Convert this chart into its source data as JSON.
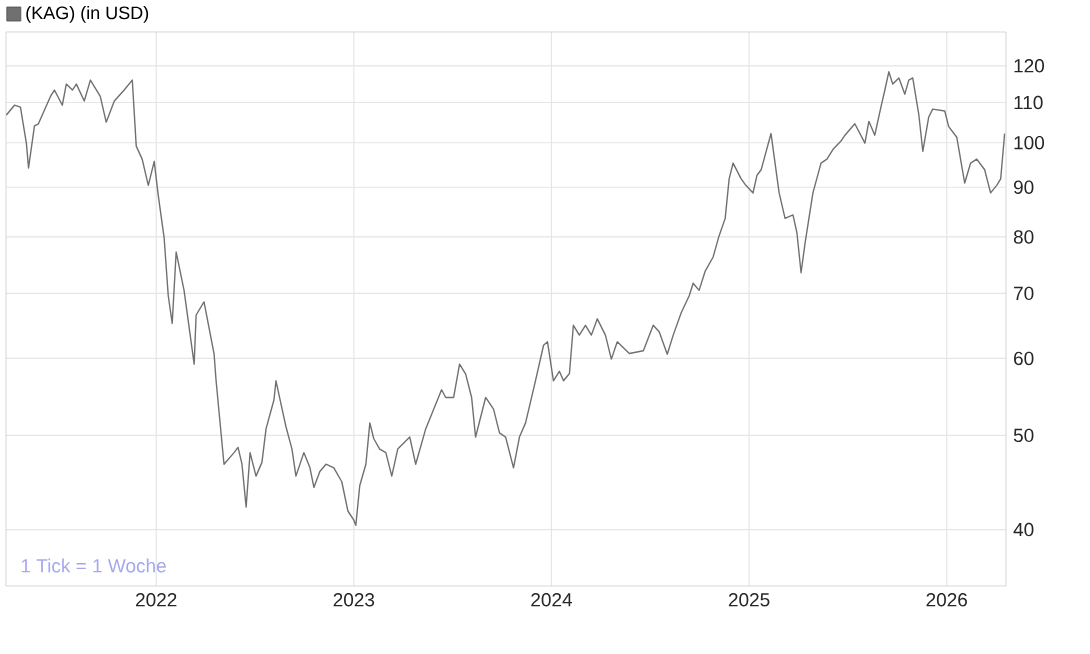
{
  "chart_data": {
    "type": "line",
    "log": true,
    "grid": true,
    "legend": "top left",
    "annotations": [
      "1 Tick = 1 Woche"
    ],
    "xlim": [
      2021.24,
      2026.3
    ],
    "xticks": [
      2022,
      2023,
      2024,
      2025,
      2026
    ],
    "ylim": [
      35,
      130
    ],
    "yticks": [
      40,
      50,
      60,
      70,
      80,
      90,
      100,
      110,
      120
    ],
    "series": [
      {
        "name": "(KAG) (in USD)",
        "color": "#707070",
        "x": [
          2021.242,
          2021.283,
          2021.313,
          2021.343,
          2021.354,
          2021.384,
          2021.404,
          2021.465,
          2021.485,
          2021.525,
          2021.545,
          2021.576,
          2021.596,
          2021.636,
          2021.667,
          2021.717,
          2021.747,
          2021.788,
          2021.838,
          2021.879,
          2021.899,
          2021.929,
          2021.96,
          2021.99,
          2022.01,
          2022.04,
          2022.061,
          2022.081,
          2022.101,
          2022.141,
          2022.192,
          2022.202,
          2022.242,
          2022.293,
          2022.303,
          2022.343,
          2022.394,
          2022.414,
          2022.434,
          2022.455,
          2022.475,
          2022.505,
          2022.535,
          2022.556,
          2022.596,
          2022.606,
          2022.646,
          2022.657,
          2022.687,
          2022.707,
          2022.747,
          2022.778,
          2022.798,
          2022.828,
          2022.859,
          2022.899,
          2022.939,
          2022.97,
          2023.0,
          2023.01,
          2023.03,
          2023.061,
          2023.081,
          2023.101,
          2023.131,
          2023.162,
          2023.192,
          2023.222,
          2023.283,
          2023.313,
          2023.364,
          2023.404,
          2023.444,
          2023.465,
          2023.505,
          2023.535,
          2023.566,
          2023.596,
          2023.616,
          2023.667,
          2023.707,
          2023.737,
          2023.768,
          2023.808,
          2023.838,
          2023.869,
          2023.919,
          2023.96,
          2023.98,
          2024.01,
          2024.04,
          2024.061,
          2024.091,
          2024.111,
          2024.141,
          2024.172,
          2024.202,
          2024.232,
          2024.273,
          2024.303,
          2024.333,
          2024.394,
          2024.465,
          2024.515,
          2024.545,
          2024.586,
          2024.616,
          2024.657,
          2024.697,
          2024.717,
          2024.747,
          2024.778,
          2024.818,
          2024.848,
          2024.879,
          2024.899,
          2024.919,
          2024.96,
          2024.98,
          2025.02,
          2025.04,
          2025.061,
          2025.111,
          2025.152,
          2025.182,
          2025.222,
          2025.242,
          2025.263,
          2025.283,
          2025.323,
          2025.364,
          2025.394,
          2025.424,
          2025.465,
          2025.485,
          2025.535,
          2025.586,
          2025.606,
          2025.636,
          2025.667,
          2025.687,
          2025.707,
          2025.727,
          2025.758,
          2025.788,
          2025.808,
          2025.828,
          2025.859,
          2025.879,
          2025.909,
          2025.929,
          2025.99,
          2026.01,
          2026.051,
          2026.091,
          2026.121,
          2026.152,
          2026.192,
          2026.222,
          2026.253,
          2026.273,
          2026.293
        ],
        "values": [
          106.8,
          109.3,
          108.8,
          99.9,
          94.2,
          104.1,
          104.6,
          111.6,
          113.3,
          109.3,
          114.9,
          113.3,
          114.9,
          110.4,
          116,
          111.6,
          105,
          110.4,
          113.3,
          116,
          99.2,
          96.2,
          90.4,
          95.7,
          88.4,
          79.9,
          69.6,
          65.2,
          77.2,
          70.5,
          59.2,
          66.5,
          68.6,
          60.6,
          56.9,
          46.7,
          48,
          48.6,
          46.7,
          42.2,
          48,
          45.4,
          46.9,
          50.8,
          54.4,
          56.9,
          52.2,
          51,
          48.4,
          45.4,
          48,
          46.3,
          44.2,
          45.9,
          46.7,
          46.3,
          44.8,
          41.8,
          40.9,
          40.4,
          44.4,
          46.7,
          51.5,
          49.6,
          48.4,
          48,
          45.4,
          48.4,
          49.8,
          46.7,
          50.8,
          53.2,
          55.7,
          54.7,
          54.7,
          59.2,
          57.8,
          54.7,
          49.8,
          54.7,
          53.2,
          50.3,
          49.8,
          46.3,
          49.8,
          51.5,
          56.9,
          61.9,
          62.4,
          56.9,
          58.2,
          56.9,
          57.9,
          64.9,
          63.4,
          64.9,
          63.4,
          65.9,
          63.4,
          59.9,
          62.4,
          60.7,
          61.1,
          64.9,
          63.9,
          60.6,
          63.4,
          66.9,
          69.6,
          71.7,
          70.5,
          73.8,
          76.3,
          80.2,
          83.6,
          91.8,
          95.3,
          91.8,
          90.6,
          88.8,
          92.6,
          93.8,
          102.2,
          88.8,
          83.6,
          84.3,
          80.8,
          73.5,
          78.8,
          88.8,
          95.3,
          96.2,
          98.4,
          100.4,
          101.8,
          104.6,
          99.9,
          105.2,
          101.8,
          108.8,
          113.3,
          118.3,
          114.9,
          116.6,
          112.2,
          116,
          116.6,
          106.8,
          98,
          106.3,
          108.3,
          107.8,
          103.9,
          101.3,
          90.9,
          95.3,
          96.2,
          93.8,
          88.8,
          90.4,
          91.8,
          102.2
        ]
      }
    ]
  }
}
